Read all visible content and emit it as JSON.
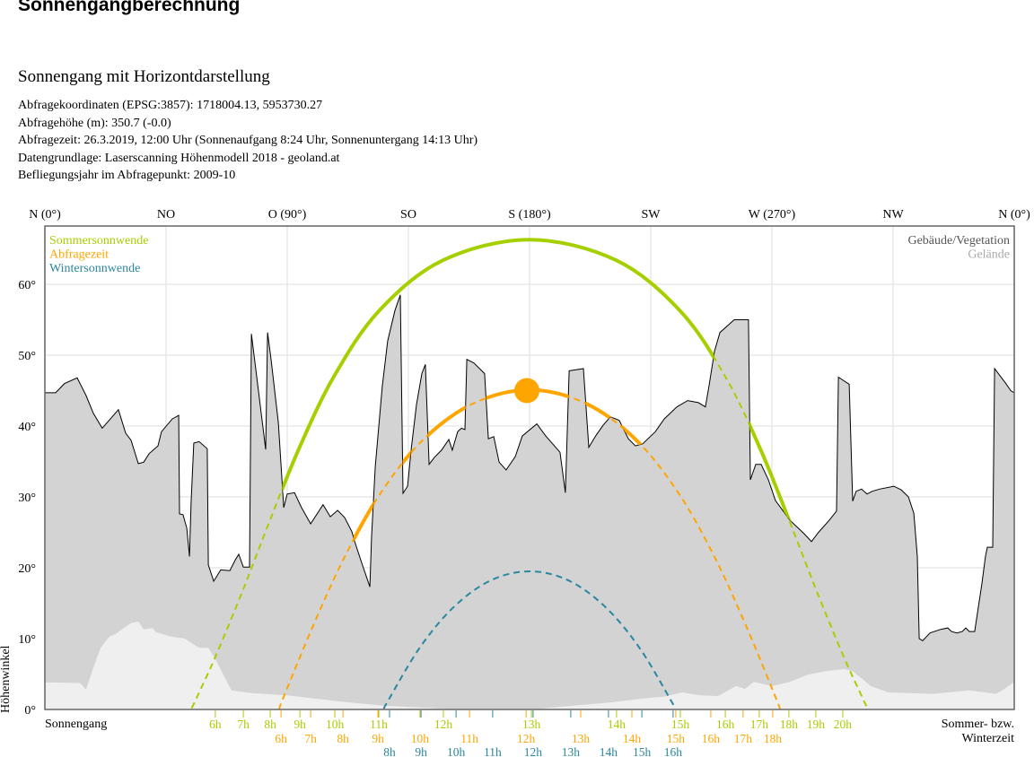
{
  "header": {
    "title": "Sonnengangberechnung",
    "subtitle": "Sonnengang mit Horizontdarstellung",
    "info": [
      "Abfragekoordinaten (EPSG:3857): 1718004.13, 5953730.27",
      "Abfragehöhe (m): 350.7 (-0.0)",
      "Abfragezeit: 26.3.2019, 12:00 Uhr (Sonnenaufgang 8:24 Uhr,  Sonnenuntergang 14:13 Uhr)",
      "Datengrundlage: Laserscanning Höhenmodell 2018 - geoland.at",
      "Befliegungsjahr im Abfragepunkt: 2009-10"
    ]
  },
  "chart_data": {
    "type": "line",
    "xlim": [
      0,
      360
    ],
    "ylim": [
      0,
      68
    ],
    "grid": true,
    "ylabel": "Höhenwinkel",
    "x_ticks_top": [
      {
        "az": 0,
        "label": "N (0°)"
      },
      {
        "az": 45,
        "label": "NO"
      },
      {
        "az": 90,
        "label": "O (90°)"
      },
      {
        "az": 135,
        "label": "SO"
      },
      {
        "az": 180,
        "label": "S (180°)"
      },
      {
        "az": 225,
        "label": "SW"
      },
      {
        "az": 270,
        "label": "W (270°)"
      },
      {
        "az": 315,
        "label": "NW"
      },
      {
        "az": 360,
        "label": "N (0°)"
      }
    ],
    "y_ticks": [
      {
        "v": 0,
        "label": "0°"
      },
      {
        "v": 10,
        "label": "10°"
      },
      {
        "v": 20,
        "label": "20°"
      },
      {
        "v": 30,
        "label": "30°"
      },
      {
        "v": 40,
        "label": "40°"
      },
      {
        "v": 50,
        "label": "50°"
      },
      {
        "v": 60,
        "label": "60°"
      }
    ],
    "bottom_left_label": "Sonnengang",
    "bottom_right_label": [
      "Sommer- bzw.",
      "Winterzeit"
    ],
    "legend_left": "top-left",
    "legend_right": "top-right",
    "horizon": {
      "buildings": {
        "name": "Gebäude/Vegetation",
        "color": "#d3d3d3",
        "label_color": "#555555",
        "points": [
          [
            0,
            44.7
          ],
          [
            4,
            44.7
          ],
          [
            7.3,
            46
          ],
          [
            12,
            46.8
          ],
          [
            15.3,
            44.3
          ],
          [
            18,
            41.8
          ],
          [
            21.3,
            39.7
          ],
          [
            27.3,
            42.3
          ],
          [
            30,
            39
          ],
          [
            32,
            38
          ],
          [
            34.7,
            34.7
          ],
          [
            36.7,
            34.9
          ],
          [
            38.7,
            36.1
          ],
          [
            42,
            37.2
          ],
          [
            43.3,
            39.2
          ],
          [
            47.3,
            41
          ],
          [
            49.7,
            41.5
          ],
          [
            50,
            27.6
          ],
          [
            51.3,
            27.5
          ],
          [
            52.7,
            25.6
          ],
          [
            53.7,
            21.6
          ],
          [
            54.3,
            29.2
          ],
          [
            55.3,
            37.6
          ],
          [
            57.3,
            37.8
          ],
          [
            60.3,
            36.8
          ],
          [
            60.7,
            20.4
          ],
          [
            62.7,
            18.1
          ],
          [
            65.3,
            19.7
          ],
          [
            68.7,
            19.6
          ],
          [
            70.7,
            21.1
          ],
          [
            72,
            21.9
          ],
          [
            73.7,
            20.1
          ],
          [
            76,
            20.1
          ],
          [
            76.7,
            53
          ],
          [
            82,
            36.7
          ],
          [
            82.7,
            53.2
          ],
          [
            84,
            49.4
          ],
          [
            86.7,
            40.5
          ],
          [
            88.7,
            28.5
          ],
          [
            90,
            30.4
          ],
          [
            92.7,
            30.6
          ],
          [
            95.3,
            28.5
          ],
          [
            98.7,
            26.2
          ],
          [
            103.3,
            28.9
          ],
          [
            106,
            27.2
          ],
          [
            108.7,
            28.1
          ],
          [
            111.3,
            27.1
          ],
          [
            114,
            25.1
          ],
          [
            115.3,
            23.4
          ],
          [
            118,
            20.3
          ],
          [
            120.7,
            17.3
          ],
          [
            121.3,
            24.2
          ],
          [
            122.7,
            34.3
          ],
          [
            125.3,
            45.6
          ],
          [
            127.3,
            52
          ],
          [
            130,
            56.3
          ],
          [
            132,
            58.5
          ],
          [
            133,
            30.5
          ],
          [
            134.7,
            31.5
          ],
          [
            136,
            36.6
          ],
          [
            138,
            43
          ],
          [
            140,
            47.4
          ],
          [
            141.3,
            48.7
          ],
          [
            142.7,
            34.6
          ],
          [
            144.7,
            35.6
          ],
          [
            147.3,
            36.6
          ],
          [
            150,
            38.1
          ],
          [
            151.3,
            36.6
          ],
          [
            153.3,
            39.2
          ],
          [
            154.7,
            39.7
          ],
          [
            156,
            39.5
          ],
          [
            156.7,
            49.4
          ],
          [
            159.3,
            48.9
          ],
          [
            163.3,
            47.4
          ],
          [
            164.7,
            38.2
          ],
          [
            166.7,
            38.5
          ],
          [
            168.7,
            34.9
          ],
          [
            171.3,
            33.8
          ],
          [
            174.7,
            35.7
          ],
          [
            177.3,
            38.6
          ],
          [
            182.7,
            40.3
          ],
          [
            186,
            38.6
          ],
          [
            191.3,
            36.3
          ],
          [
            193.3,
            30.6
          ],
          [
            194.7,
            47.8
          ],
          [
            200,
            48.1
          ],
          [
            202,
            37
          ],
          [
            204.7,
            38.7
          ],
          [
            207.3,
            40.1
          ],
          [
            210,
            41.3
          ],
          [
            213.3,
            40.8
          ],
          [
            216.7,
            38.2
          ],
          [
            219.3,
            37.2
          ],
          [
            222,
            37.5
          ],
          [
            226.7,
            39.2
          ],
          [
            230,
            41
          ],
          [
            234.7,
            42.7
          ],
          [
            238.7,
            43.6
          ],
          [
            242.7,
            43.3
          ],
          [
            245.3,
            42.7
          ],
          [
            246.7,
            45.8
          ],
          [
            248.7,
            50.6
          ],
          [
            250.7,
            53.2
          ],
          [
            256,
            55
          ],
          [
            261.3,
            55
          ],
          [
            262,
            32.4
          ],
          [
            264,
            34.6
          ],
          [
            266,
            34.6
          ],
          [
            268.7,
            32.4
          ],
          [
            271.3,
            29.5
          ],
          [
            276.7,
            26.7
          ],
          [
            282,
            24.8
          ],
          [
            284.7,
            23.7
          ],
          [
            287.3,
            25
          ],
          [
            291.3,
            26.7
          ],
          [
            294,
            28
          ],
          [
            294.7,
            46.9
          ],
          [
            298.7,
            45.9
          ],
          [
            300,
            29.4
          ],
          [
            301.3,
            30.8
          ],
          [
            303.3,
            31.1
          ],
          [
            305.3,
            30.4
          ],
          [
            307.3,
            30.8
          ],
          [
            310,
            31.1
          ],
          [
            315.3,
            31.5
          ],
          [
            318,
            31
          ],
          [
            320.7,
            30
          ],
          [
            322.7,
            27.7
          ],
          [
            324,
            21.6
          ],
          [
            324.7,
            10
          ],
          [
            326,
            9.7
          ],
          [
            328.7,
            10.8
          ],
          [
            332.7,
            11.3
          ],
          [
            335.3,
            11.5
          ],
          [
            336.7,
            11
          ],
          [
            338.7,
            10.8
          ],
          [
            340.7,
            11
          ],
          [
            342,
            11.5
          ],
          [
            343.3,
            11
          ],
          [
            345.3,
            11
          ],
          [
            348,
            17.8
          ],
          [
            349.3,
            21.6
          ],
          [
            350,
            22.9
          ],
          [
            352,
            22.9
          ],
          [
            352.7,
            48.1
          ],
          [
            356.7,
            46.1
          ],
          [
            358.7,
            45
          ],
          [
            360,
            44.7
          ]
        ]
      },
      "terrain": {
        "name": "Gelände",
        "color": "#efefef",
        "label_color": "#aaaaaa",
        "points": [
          [
            0,
            3.8
          ],
          [
            6.7,
            3.8
          ],
          [
            13.3,
            3.7
          ],
          [
            15.3,
            2.8
          ],
          [
            18,
            5.9
          ],
          [
            20.7,
            8.7
          ],
          [
            24,
            10.3
          ],
          [
            26,
            10.6
          ],
          [
            32,
            12.2
          ],
          [
            34.7,
            12.4
          ],
          [
            36.7,
            11.3
          ],
          [
            40,
            11.5
          ],
          [
            41.3,
            10.9
          ],
          [
            46.7,
            10.3
          ],
          [
            52,
            10
          ],
          [
            57.3,
            8.7
          ],
          [
            60.7,
            8.7
          ],
          [
            63.3,
            7.1
          ],
          [
            66.7,
            4.6
          ],
          [
            69.3,
            2.7
          ],
          [
            76.7,
            2.3
          ],
          [
            90,
            2
          ],
          [
            110,
            1.1
          ],
          [
            126.7,
            0.5
          ],
          [
            150,
            0.1
          ],
          [
            183.3,
            0.1
          ],
          [
            210,
            1
          ],
          [
            223.3,
            1.6
          ],
          [
            230,
            1.8
          ],
          [
            236.7,
            2.4
          ],
          [
            243.3,
            2
          ],
          [
            250,
            1.9
          ],
          [
            256.7,
            3.3
          ],
          [
            260,
            2.9
          ],
          [
            263.3,
            3.9
          ],
          [
            270,
            3.3
          ],
          [
            276.7,
            3.9
          ],
          [
            283.3,
            4.9
          ],
          [
            290,
            5.4
          ],
          [
            296.7,
            5.7
          ],
          [
            300,
            5.4
          ],
          [
            306.7,
            3.3
          ],
          [
            313.3,
            2.4
          ],
          [
            330,
            2.2
          ],
          [
            343.3,
            2.7
          ],
          [
            353.3,
            2.2
          ],
          [
            356.7,
            3
          ],
          [
            360,
            3.9
          ]
        ]
      }
    },
    "series": [
      {
        "name": "Sommersonnwende",
        "color": "#a6cf00",
        "points": [
          [
            54.5,
            0.2
          ],
          [
            56.3,
            1.6
          ],
          [
            63.4,
            7.5
          ],
          [
            73.6,
            16.9
          ],
          [
            83.8,
            26.9
          ],
          [
            94.7,
            37.1
          ],
          [
            107.5,
            47.1
          ],
          [
            124.2,
            56.3
          ],
          [
            147.9,
            63.4
          ],
          [
            180,
            66.3
          ],
          [
            212.1,
            63.4
          ],
          [
            235.8,
            56.3
          ],
          [
            252.5,
            47.1
          ],
          [
            265.3,
            37.1
          ],
          [
            276.2,
            26.9
          ],
          [
            286.4,
            16.9
          ],
          [
            296.6,
            7.5
          ],
          [
            303.7,
            1.6
          ],
          [
            305.5,
            0.2
          ]
        ],
        "ticks": [
          {
            "az": 63.3,
            "label": "6h"
          },
          {
            "az": 73.7,
            "label": "7h"
          },
          {
            "az": 83.7,
            "label": "8h"
          },
          {
            "az": 94.7,
            "label": "9h"
          },
          {
            "az": 107.7,
            "label": "10h"
          },
          {
            "az": 124,
            "label": "11h"
          },
          {
            "az": 148,
            "label": "12h"
          },
          {
            "az": 180.7,
            "label": "13h"
          },
          {
            "az": 212.3,
            "label": "14h"
          },
          {
            "az": 236,
            "label": "15h"
          },
          {
            "az": 252.7,
            "label": "16h"
          },
          {
            "az": 265.3,
            "label": "17h"
          },
          {
            "az": 276.3,
            "label": "18h"
          },
          {
            "az": 286.3,
            "label": "19h"
          },
          {
            "az": 296.3,
            "label": "20h"
          }
        ]
      },
      {
        "name": "Abfragezeit",
        "color": "#ffa500",
        "points": [
          [
            87,
            0
          ],
          [
            88.5,
            1.6
          ],
          [
            99.6,
            11.8
          ],
          [
            111.4,
            21.6
          ],
          [
            124.8,
            30.6
          ],
          [
            140.6,
            38.1
          ],
          [
            159.2,
            43.2
          ],
          [
            180,
            45.1
          ],
          [
            200.8,
            43.2
          ],
          [
            219.4,
            38.1
          ],
          [
            235.2,
            30.6
          ],
          [
            248.6,
            21.6
          ],
          [
            260.4,
            11.8
          ],
          [
            271.5,
            1.6
          ],
          [
            273,
            0
          ]
        ],
        "ticks": [
          {
            "az": 87.7,
            "label": "6h"
          },
          {
            "az": 98.7,
            "label": "7h"
          },
          {
            "az": 110.7,
            "label": "8h"
          },
          {
            "az": 123.7,
            "label": "9h"
          },
          {
            "az": 139.3,
            "label": "10h"
          },
          {
            "az": 157.7,
            "label": "11h"
          },
          {
            "az": 178.7,
            "label": "12h"
          },
          {
            "az": 199,
            "label": "13h"
          },
          {
            "az": 218,
            "label": "14h"
          },
          {
            "az": 234.3,
            "label": "15h"
          },
          {
            "az": 247.3,
            "label": "16h"
          },
          {
            "az": 259.3,
            "label": "17h"
          },
          {
            "az": 270.3,
            "label": "18h"
          }
        ],
        "sun_position": {
          "az": 179,
          "alt": 45
        }
      },
      {
        "name": "Wintersonnwende",
        "color": "#2a87a0",
        "points": [
          [
            125.9,
            0.1
          ],
          [
            127.4,
            1.2
          ],
          [
            139,
            8.6
          ],
          [
            151.7,
            14.4
          ],
          [
            165.5,
            18.2
          ],
          [
            180,
            19.5
          ],
          [
            194.5,
            18.2
          ],
          [
            208.3,
            14.4
          ],
          [
            221,
            8.6
          ],
          [
            232.6,
            1.2
          ],
          [
            234.1,
            0.1
          ]
        ],
        "ticks": [
          {
            "az": 128,
            "label": "8h"
          },
          {
            "az": 139.7,
            "label": "9h"
          },
          {
            "az": 152.7,
            "label": "10h"
          },
          {
            "az": 166.3,
            "label": "11h"
          },
          {
            "az": 181.3,
            "label": "12h"
          },
          {
            "az": 195.3,
            "label": "13h"
          },
          {
            "az": 209.3,
            "label": "14h"
          },
          {
            "az": 221.7,
            "label": "15h"
          },
          {
            "az": 233.3,
            "label": "16h"
          }
        ]
      }
    ]
  }
}
